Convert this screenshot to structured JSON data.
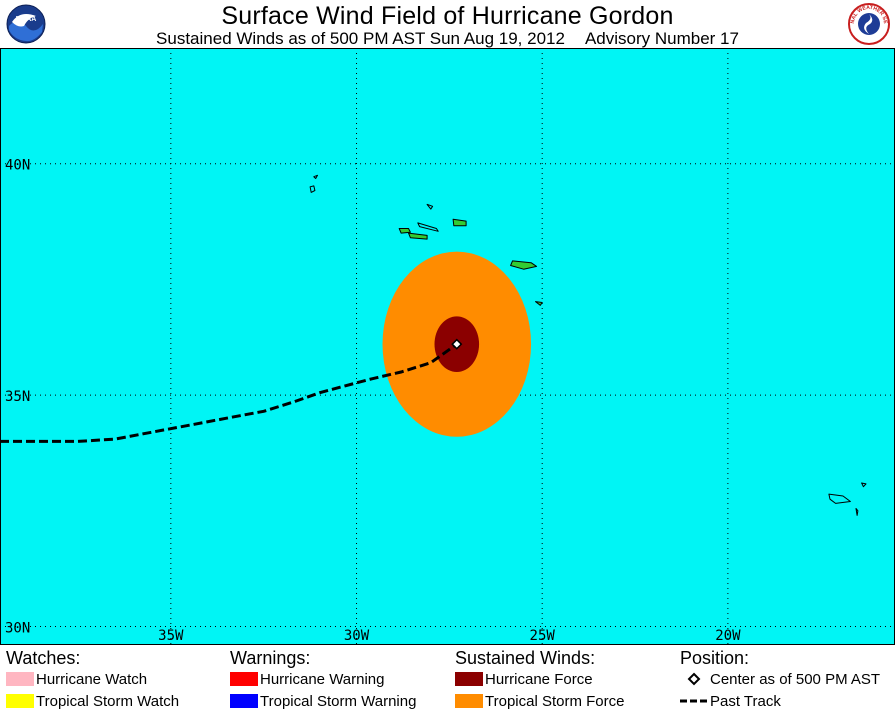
{
  "header": {
    "title": "Surface Wind Field of Hurricane Gordon",
    "subtitle_time": "Sustained Winds as of 500 PM AST Sun Aug 19, 2012",
    "subtitle_advisory": "Advisory Number 17",
    "logo_left_text": "NOAA",
    "logo_right_text": "NATIONAL WEATHER SERVICE"
  },
  "map": {
    "ocean_color": "#00f5f5",
    "land_color": "#33cc33",
    "hurricane_force_color": "#8b0000",
    "tropical_storm_force_color": "#ff8c00",
    "grid": true,
    "lon_range": [
      -39.6,
      -15.5
    ],
    "lat_range": [
      29.6,
      42.5
    ],
    "lat_labels": [
      {
        "lat": 40,
        "text": "40N"
      },
      {
        "lat": 35,
        "text": "35N"
      },
      {
        "lat": 30,
        "text": "30N"
      }
    ],
    "lon_labels": [
      {
        "lon": -35,
        "text": "35W"
      },
      {
        "lon": -30,
        "text": "30W"
      },
      {
        "lon": -25,
        "text": "25W"
      },
      {
        "lon": -20,
        "text": "20W"
      }
    ],
    "center": {
      "lon": -27.3,
      "lat": 36.1
    },
    "hurricane_force_radius_deg": 0.6,
    "tropical_storm_radius_deg": 2.0,
    "past_track": [
      [
        -39.6,
        34.0
      ],
      [
        -38.2,
        34.0
      ],
      [
        -37.5,
        34.0
      ],
      [
        -36.5,
        34.05
      ],
      [
        -35.5,
        34.2
      ],
      [
        -34.5,
        34.35
      ],
      [
        -33.5,
        34.5
      ],
      [
        -32.5,
        34.65
      ],
      [
        -31.7,
        34.85
      ],
      [
        -31.0,
        35.05
      ],
      [
        -30.3,
        35.2
      ],
      [
        -29.6,
        35.35
      ],
      [
        -28.8,
        35.5
      ],
      [
        -28.0,
        35.7
      ],
      [
        -27.3,
        36.1
      ]
    ],
    "islands": [
      {
        "name": "Corvo",
        "pts": [
          [
            -31.15,
            39.72
          ],
          [
            -31.05,
            39.75
          ],
          [
            -31.1,
            39.68
          ]
        ],
        "filled": false
      },
      {
        "name": "Flores",
        "pts": [
          [
            -31.25,
            39.5
          ],
          [
            -31.15,
            39.52
          ],
          [
            -31.12,
            39.42
          ],
          [
            -31.22,
            39.38
          ]
        ],
        "filled": false
      },
      {
        "name": "Graciosa",
        "pts": [
          [
            -28.1,
            39.12
          ],
          [
            -27.95,
            39.08
          ],
          [
            -28.0,
            39.02
          ]
        ],
        "filled": false
      },
      {
        "name": "Terceira",
        "pts": [
          [
            -27.4,
            38.8
          ],
          [
            -27.05,
            38.76
          ],
          [
            -27.05,
            38.66
          ],
          [
            -27.38,
            38.66
          ]
        ],
        "filled": true
      },
      {
        "name": "Sao Jorge",
        "pts": [
          [
            -28.35,
            38.72
          ],
          [
            -27.85,
            38.6
          ],
          [
            -27.8,
            38.54
          ],
          [
            -28.3,
            38.64
          ]
        ],
        "filled": false
      },
      {
        "name": "Faial",
        "pts": [
          [
            -28.85,
            38.6
          ],
          [
            -28.6,
            38.6
          ],
          [
            -28.55,
            38.52
          ],
          [
            -28.8,
            38.5
          ]
        ],
        "filled": true
      },
      {
        "name": "Pico",
        "pts": [
          [
            -28.6,
            38.5
          ],
          [
            -28.1,
            38.45
          ],
          [
            -28.1,
            38.37
          ],
          [
            -28.55,
            38.4
          ]
        ],
        "filled": true
      },
      {
        "name": "Sao Miguel",
        "pts": [
          [
            -25.8,
            37.9
          ],
          [
            -25.3,
            37.86
          ],
          [
            -25.15,
            37.78
          ],
          [
            -25.5,
            37.72
          ],
          [
            -25.85,
            37.8
          ]
        ],
        "filled": true
      },
      {
        "name": "Santa Maria",
        "pts": [
          [
            -25.18,
            37.02
          ],
          [
            -25.0,
            37.0
          ],
          [
            -25.05,
            36.94
          ]
        ],
        "filled": true
      },
      {
        "name": "Madeira",
        "pts": [
          [
            -17.28,
            32.86
          ],
          [
            -16.9,
            32.82
          ],
          [
            -16.7,
            32.7
          ],
          [
            -17.1,
            32.66
          ],
          [
            -17.25,
            32.75
          ]
        ],
        "filled": false
      },
      {
        "name": "Porto Santo",
        "pts": [
          [
            -16.4,
            33.1
          ],
          [
            -16.28,
            33.08
          ],
          [
            -16.35,
            33.02
          ]
        ],
        "filled": false
      },
      {
        "name": "Desertas",
        "pts": [
          [
            -16.55,
            32.55
          ],
          [
            -16.5,
            32.5
          ],
          [
            -16.52,
            32.4
          ]
        ],
        "filled": false
      }
    ]
  },
  "legend": {
    "watches": {
      "heading": "Watches:",
      "items": [
        {
          "label": "Hurricane Watch",
          "color": "#ffb6c1"
        },
        {
          "label": "Tropical Storm Watch",
          "color": "#ffff00"
        }
      ]
    },
    "warnings": {
      "heading": "Warnings:",
      "items": [
        {
          "label": "Hurricane Warning",
          "color": "#ff0000"
        },
        {
          "label": "Tropical Storm Warning",
          "color": "#0000ff"
        }
      ]
    },
    "winds": {
      "heading": "Sustained Winds:",
      "items": [
        {
          "label": "Hurricane Force",
          "color": "#8b0000"
        },
        {
          "label": "Tropical Storm Force",
          "color": "#ff8c00"
        }
      ]
    },
    "position": {
      "heading": "Position:",
      "items": [
        {
          "label": "Center as of 500 PM AST",
          "icon": "diamond-icon"
        },
        {
          "label": "Past Track",
          "icon": "dashed-line-icon"
        }
      ]
    }
  }
}
